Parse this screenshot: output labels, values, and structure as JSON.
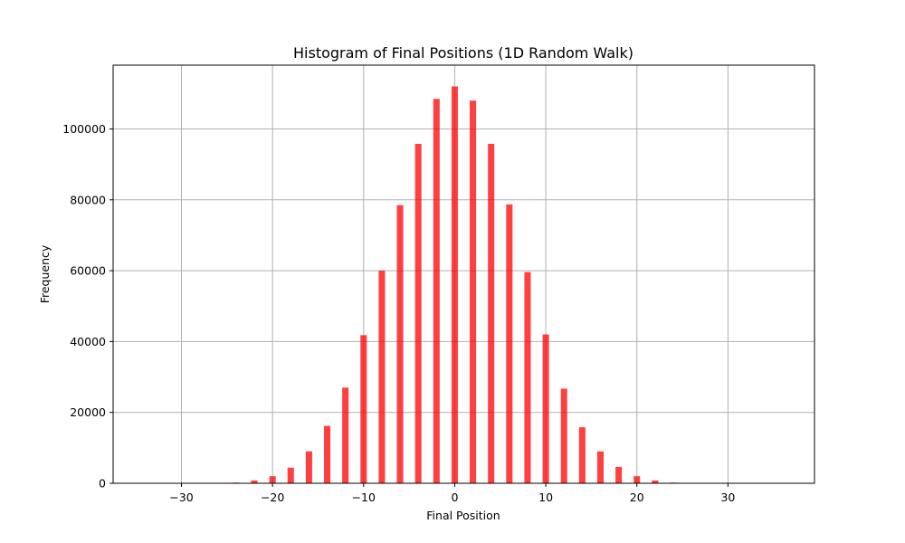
{
  "chart_data": {
    "type": "bar",
    "title": "Histogram of Final Positions (1D Random Walk)",
    "xlabel": "Final Position",
    "ylabel": "Frequency",
    "xlim": [
      -37.5,
      39.5
    ],
    "ylim": [
      0,
      118000
    ],
    "grid": true,
    "bar_color": "#ff0000",
    "bar_alpha": 0.75,
    "x_ticks": [
      -30,
      -20,
      -10,
      0,
      10,
      20,
      30
    ],
    "x_tick_labels": [
      "−30",
      "−20",
      "−10",
      "0",
      "10",
      "20",
      "30"
    ],
    "y_ticks": [
      0,
      20000,
      40000,
      60000,
      80000,
      100000
    ],
    "y_tick_labels": [
      "0",
      "20000",
      "40000",
      "60000",
      "80000",
      "100000"
    ],
    "x": [
      -24,
      -22,
      -20,
      -18,
      -16,
      -14,
      -12,
      -10,
      -8,
      -6,
      -4,
      -2,
      0,
      2,
      4,
      6,
      8,
      10,
      12,
      14,
      16,
      18,
      20,
      22,
      24
    ],
    "values": [
      200,
      800,
      2000,
      4400,
      9000,
      16200,
      27000,
      41800,
      60000,
      78500,
      95800,
      108500,
      112000,
      108000,
      95800,
      78700,
      59600,
      42000,
      26700,
      15800,
      9000,
      4600,
      2000,
      800,
      200
    ]
  }
}
